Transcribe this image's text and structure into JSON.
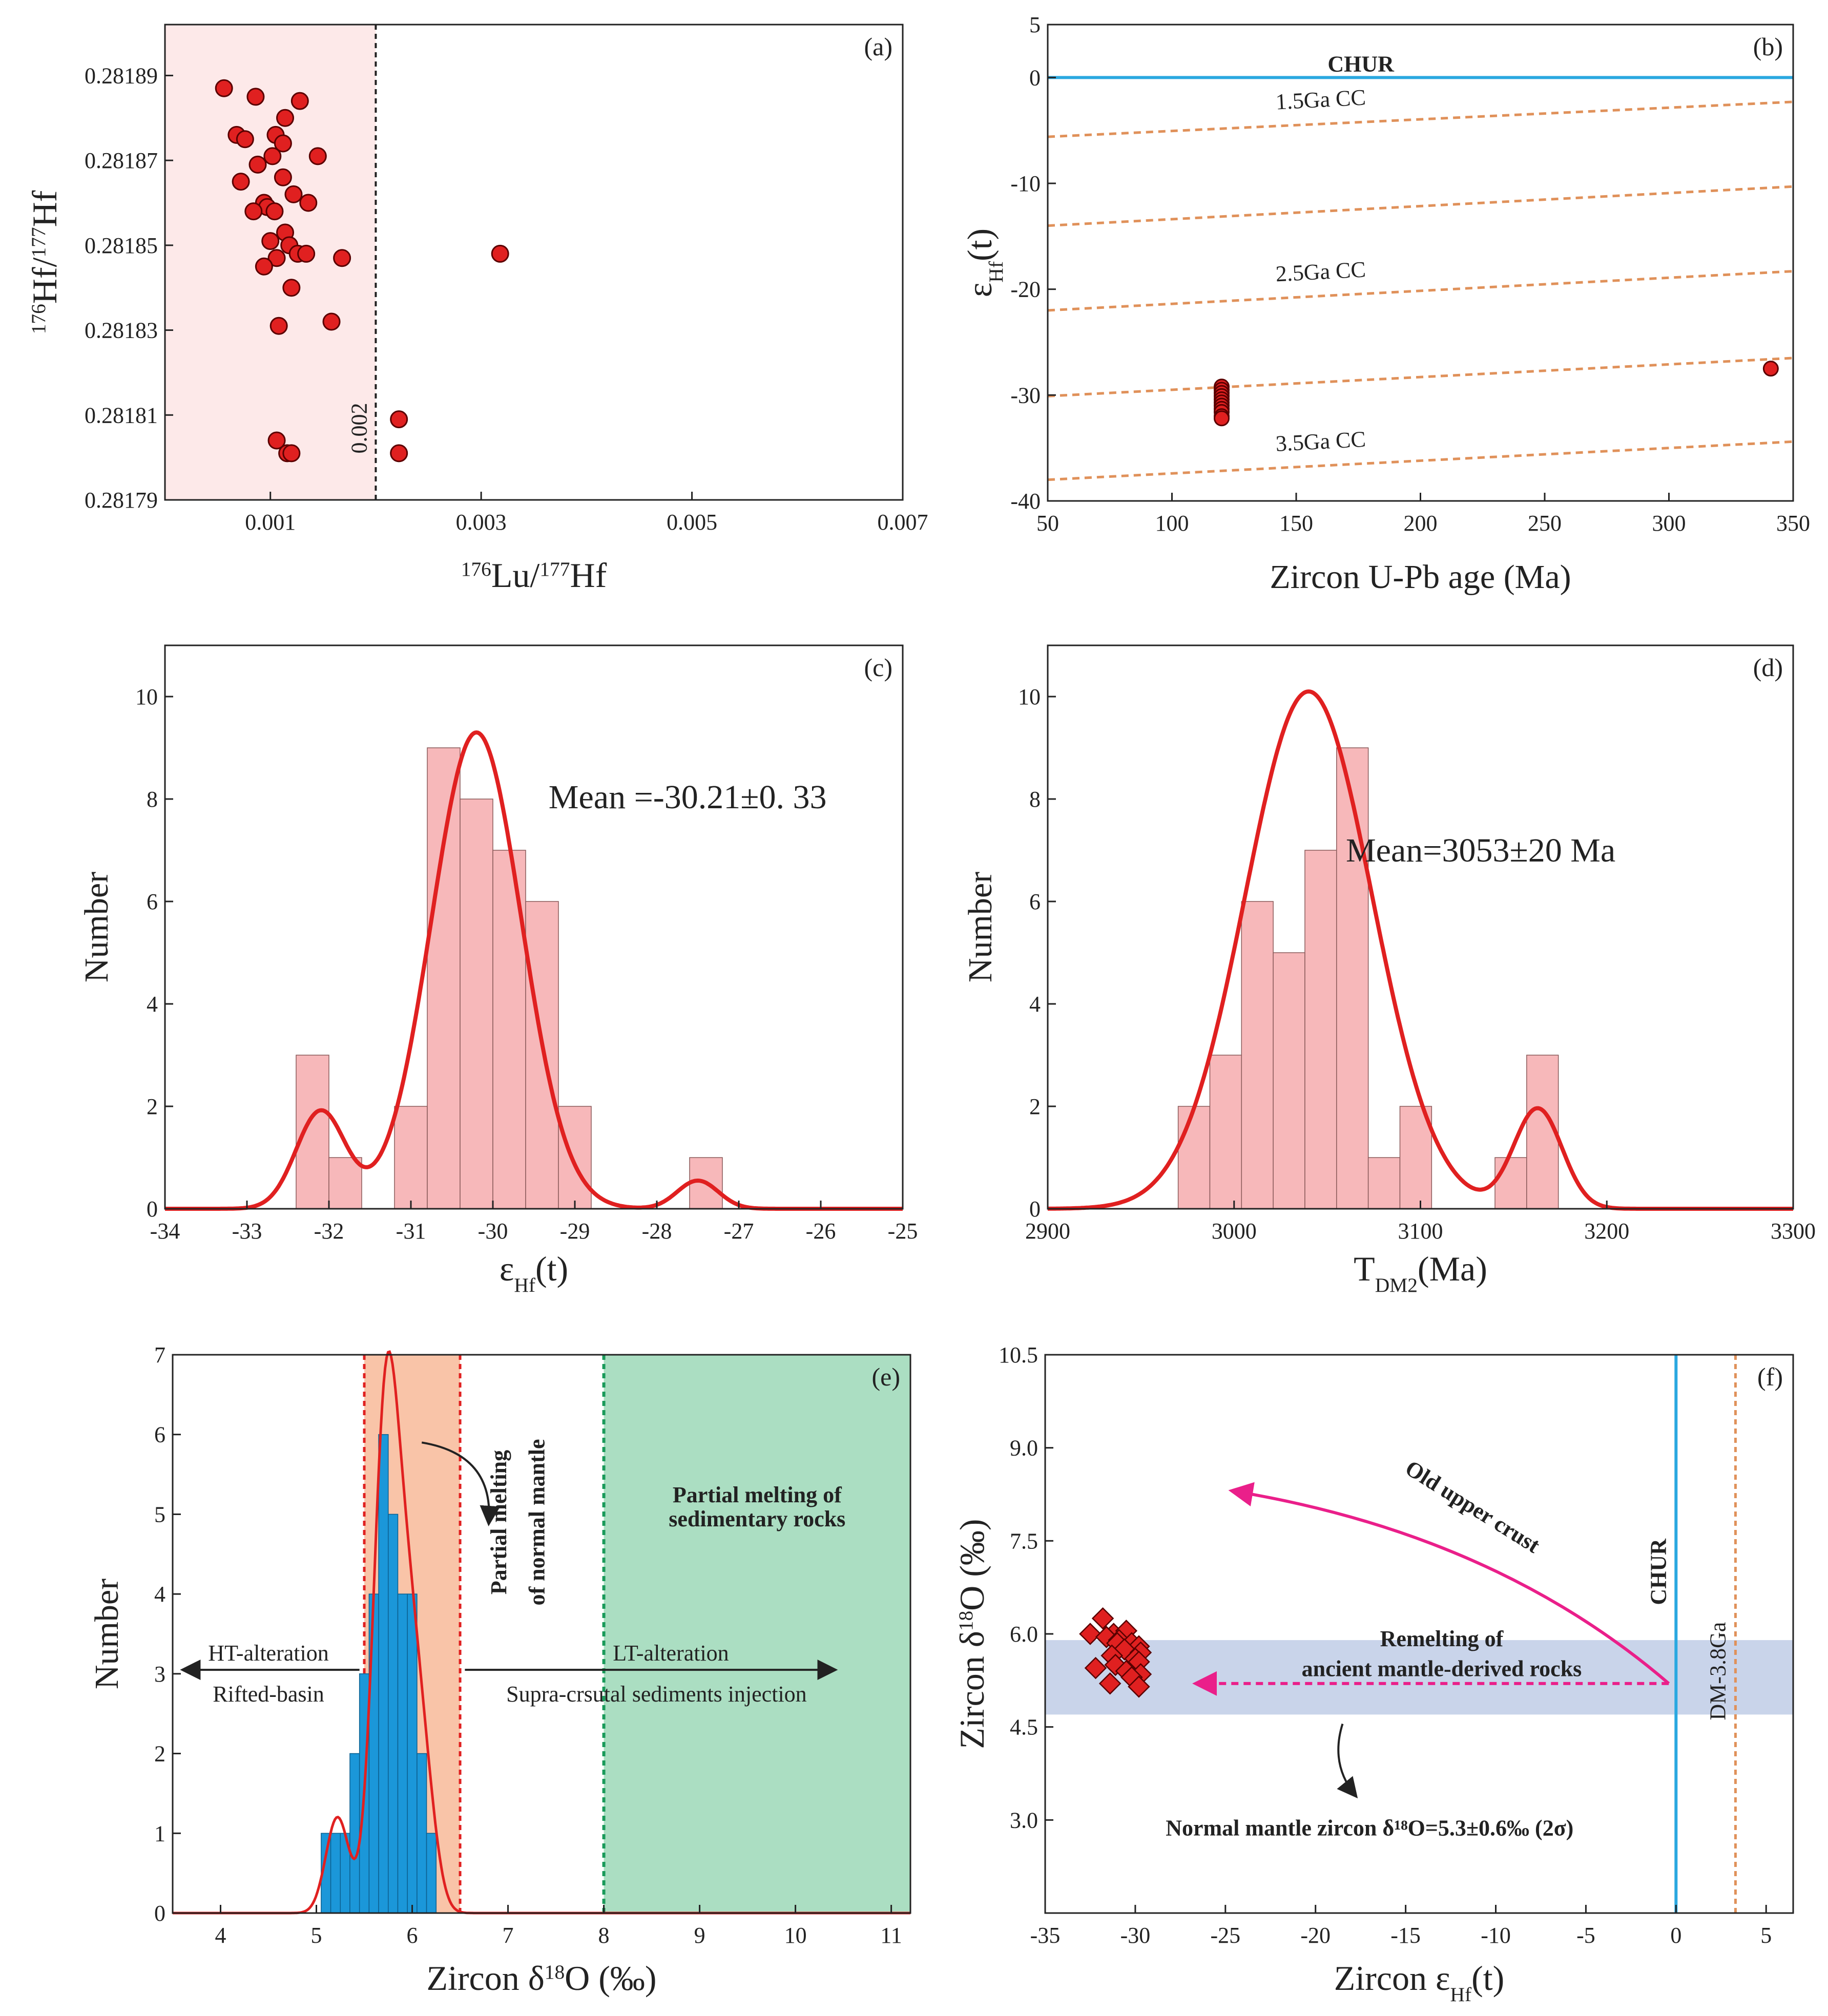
{
  "chart_data": [
    {
      "panel": "a",
      "type": "scatter",
      "label": "(a)",
      "xlabel_sup1": "176",
      "xlabel_mid1": "Lu/",
      "xlabel_sup2": "177",
      "xlabel_mid2": "Hf",
      "ylabel_sup1": "176",
      "ylabel_mid1": "Hf/",
      "ylabel_sup2": "177",
      "ylabel_mid2": "Hf",
      "xlim": [
        0,
        0.007
      ],
      "ylim": [
        0.28179,
        0.281902
      ],
      "xticks": [
        "0.001",
        "0.003",
        "0.005",
        "0.007"
      ],
      "xtick_values": [
        0.001,
        0.003,
        0.005,
        0.007
      ],
      "yticks": [
        "0.28179",
        "0.28181",
        "0.28183",
        "0.28185",
        "0.28187",
        "0.28189"
      ],
      "ytick_values": [
        0.28179,
        0.28181,
        0.28183,
        0.28185,
        0.28187,
        0.28189
      ],
      "threshold": 0.002,
      "threshold_label": "0.002",
      "region_color": "#fde9e9",
      "point_color": "#e02020",
      "points": [
        [
          0.00056,
          0.281887
        ],
        [
          0.00086,
          0.281885
        ],
        [
          0.00068,
          0.281876
        ],
        [
          0.00076,
          0.281875
        ],
        [
          0.00105,
          0.281876
        ],
        [
          0.00112,
          0.281874
        ],
        [
          0.00102,
          0.281871
        ],
        [
          0.00088,
          0.281869
        ],
        [
          0.00128,
          0.281884
        ],
        [
          0.00114,
          0.28188
        ],
        [
          0.00145,
          0.281871
        ],
        [
          0.00072,
          0.281865
        ],
        [
          0.00112,
          0.281866
        ],
        [
          0.00094,
          0.28186
        ],
        [
          0.00122,
          0.281862
        ],
        [
          0.00097,
          0.281859
        ],
        [
          0.00104,
          0.281858
        ],
        [
          0.00084,
          0.281858
        ],
        [
          0.00136,
          0.28186
        ],
        [
          0.00114,
          0.281853
        ],
        [
          0.00118,
          0.28185
        ],
        [
          0.001,
          0.281851
        ],
        [
          0.00106,
          0.281847
        ],
        [
          0.00126,
          0.281848
        ],
        [
          0.00134,
          0.281848
        ],
        [
          0.00168,
          0.281847
        ],
        [
          0.00094,
          0.281845
        ],
        [
          0.0012,
          0.28184
        ],
        [
          0.00158,
          0.281832
        ],
        [
          0.00108,
          0.281831
        ],
        [
          0.00318,
          0.281848
        ],
        [
          0.00106,
          0.281804
        ],
        [
          0.00116,
          0.281801
        ],
        [
          0.0012,
          0.281801
        ],
        [
          0.00222,
          0.281809
        ],
        [
          0.00222,
          0.281801
        ]
      ]
    },
    {
      "panel": "b",
      "type": "scatter",
      "label": "(b)",
      "xlabel": "Zircon  U-Pb  age  (Ma)",
      "ylabel_main": "ε",
      "ylabel_sub": "Hf",
      "ylabel_tail": "(t)",
      "xlim": [
        50,
        350
      ],
      "ylim": [
        -40,
        5
      ],
      "xticks": [
        "50",
        "100",
        "150",
        "200",
        "250",
        "300",
        "350"
      ],
      "xtick_values": [
        50,
        100,
        150,
        200,
        250,
        300,
        350
      ],
      "yticks": [
        "5",
        "0",
        "-10",
        "-20",
        "-30",
        "-40"
      ],
      "ytick_values": [
        5,
        0,
        -10,
        -20,
        -30,
        -40
      ],
      "chur_label": "CHUR",
      "chur_color": "#2aa8e0",
      "cc_color": "#e0915a",
      "cc_lines": [
        {
          "label": "1.5Ga CC",
          "y50": -5.6,
          "y350": -2.3,
          "show": true
        },
        {
          "label": "",
          "y50": -14.0,
          "y350": -10.3,
          "show": false
        },
        {
          "label": "2.5Ga CC",
          "y50": -22.0,
          "y350": -18.3,
          "show": true
        },
        {
          "label": "",
          "y50": -30.1,
          "y350": -26.5,
          "show": false
        },
        {
          "label": "3.5Ga CC",
          "y50": -38.0,
          "y350": -34.4,
          "show": true
        }
      ],
      "point_color": "#e02020",
      "points": [
        [
          120,
          -29.2
        ],
        [
          120,
          -29.5
        ],
        [
          120,
          -29.8
        ],
        [
          120,
          -30.1
        ],
        [
          120,
          -30.4
        ],
        [
          120,
          -30.7
        ],
        [
          120,
          -31.0
        ],
        [
          120,
          -31.3
        ],
        [
          120,
          -31.6
        ],
        [
          120,
          -32.0
        ],
        [
          120,
          -32.2
        ],
        [
          341,
          -27.5
        ]
      ]
    },
    {
      "panel": "c",
      "type": "bar",
      "label": "(c)",
      "xlabel_main": "ε",
      "xlabel_sub": "Hf",
      "xlabel_tail": "(t)",
      "ylabel": "Number",
      "xlim": [
        -34,
        -25
      ],
      "ylim": [
        0,
        11
      ],
      "xticks": [
        "-34",
        "-33",
        "-32",
        "-31",
        "-30",
        "-29",
        "-28",
        "-27",
        "-26",
        "-25"
      ],
      "xtick_values": [
        -34,
        -33,
        -32,
        -31,
        -30,
        -29,
        -28,
        -27,
        -26,
        -25
      ],
      "yticks": [
        "0",
        "2",
        "4",
        "6",
        "8",
        "10"
      ],
      "ytick_values": [
        0,
        2,
        4,
        6,
        8,
        10
      ],
      "bar_color": "#f7b8ba",
      "curve_color": "#e02020",
      "annotation": "Mean =-30.21±0. 33",
      "bins": [
        {
          "x0": -32.4,
          "x1": -32.0,
          "count": 3
        },
        {
          "x0": -32.0,
          "x1": -31.6,
          "count": 1
        },
        {
          "x0": -31.2,
          "x1": -30.8,
          "count": 2
        },
        {
          "x0": -30.8,
          "x1": -30.4,
          "count": 9
        },
        {
          "x0": -30.4,
          "x1": -30.0,
          "count": 8
        },
        {
          "x0": -30.0,
          "x1": -29.6,
          "count": 7
        },
        {
          "x0": -29.6,
          "x1": -29.2,
          "count": 6
        },
        {
          "x0": -29.2,
          "x1": -28.8,
          "count": 2
        },
        {
          "x0": -27.6,
          "x1": -27.2,
          "count": 1
        }
      ],
      "curve_components": [
        {
          "mu": -30.2,
          "sigma": 0.55,
          "amp": 9.3
        },
        {
          "mu": -32.1,
          "sigma": 0.3,
          "amp": 1.9
        },
        {
          "mu": -27.5,
          "sigma": 0.25,
          "amp": 0.55
        }
      ]
    },
    {
      "panel": "d",
      "type": "bar",
      "label": "(d)",
      "xlabel_main": "T",
      "xlabel_sub": "DM2",
      "xlabel_tail": "(Ma)",
      "ylabel": "Number",
      "xlim": [
        2900,
        3300
      ],
      "ylim": [
        0,
        11
      ],
      "xticks": [
        "2900",
        "3000",
        "3100",
        "3200",
        "3300"
      ],
      "xtick_values": [
        2900,
        3000,
        3100,
        3200,
        3300
      ],
      "yticks": [
        "0",
        "2",
        "4",
        "6",
        "8",
        "10"
      ],
      "ytick_values": [
        0,
        2,
        4,
        6,
        8,
        10
      ],
      "bar_color": "#f7b8ba",
      "curve_color": "#e02020",
      "annotation": "Mean=3053±20 Ma",
      "bins": [
        {
          "x0": 2970,
          "x1": 2987,
          "count": 2
        },
        {
          "x0": 2987,
          "x1": 3004,
          "count": 3
        },
        {
          "x0": 3004,
          "x1": 3021,
          "count": 6
        },
        {
          "x0": 3021,
          "x1": 3038,
          "count": 5
        },
        {
          "x0": 3038,
          "x1": 3055,
          "count": 7
        },
        {
          "x0": 3055,
          "x1": 3072,
          "count": 9
        },
        {
          "x0": 3072,
          "x1": 3089,
          "count": 1
        },
        {
          "x0": 3089,
          "x1": 3106,
          "count": 2
        },
        {
          "x0": 3140,
          "x1": 3157,
          "count": 1
        },
        {
          "x0": 3157,
          "x1": 3174,
          "count": 3
        }
      ],
      "curve_components": [
        {
          "mu": 3040,
          "sigma": 34,
          "amp": 10.1
        },
        {
          "mu": 3163,
          "sigma": 13,
          "amp": 1.95
        }
      ]
    },
    {
      "panel": "e",
      "type": "bar",
      "label": "(e)",
      "xlabel_main": "Zircon δ",
      "xlabel_sup": "18",
      "xlabel_tail": "O (‰)",
      "ylabel": "Number",
      "xlim": [
        3.5,
        11.2
      ],
      "ylim": [
        0,
        7
      ],
      "xticks": [
        "4",
        "5",
        "6",
        "7",
        "8",
        "9",
        "10",
        "11"
      ],
      "xtick_values": [
        4,
        5,
        6,
        7,
        8,
        9,
        10,
        11
      ],
      "yticks": [
        "0",
        "1",
        "2",
        "3",
        "4",
        "5",
        "6",
        "7"
      ],
      "ytick_values": [
        0,
        1,
        2,
        3,
        4,
        5,
        6,
        7
      ],
      "bar_color": "#1b97d9",
      "curve_color": "#e02020",
      "mantle_band": [
        5.5,
        6.5
      ],
      "mantle_band_color": "#f9c4a8",
      "sediment_band": [
        8.0,
        11.2
      ],
      "sediment_band_color": "#abdec2",
      "mantle_label_1": "Partial melting",
      "mantle_label_2": "of normal mantle",
      "sediment_label_1": "Partial melting of",
      "sediment_label_2": "sedimentary rocks",
      "ht_label": "HT-alteration",
      "rift_label": "Rifted-basin",
      "lt_label": "LT-alteration",
      "supra_label": "Supra-crsutal sediments injection",
      "bins": [
        {
          "x0": 5.05,
          "x1": 5.15,
          "count": 1
        },
        {
          "x0": 5.15,
          "x1": 5.25,
          "count": 1
        },
        {
          "x0": 5.25,
          "x1": 5.35,
          "count": 1
        },
        {
          "x0": 5.35,
          "x1": 5.45,
          "count": 2
        },
        {
          "x0": 5.45,
          "x1": 5.55,
          "count": 3
        },
        {
          "x0": 5.55,
          "x1": 5.65,
          "count": 4
        },
        {
          "x0": 5.65,
          "x1": 5.75,
          "count": 6
        },
        {
          "x0": 5.75,
          "x1": 5.85,
          "count": 5
        },
        {
          "x0": 5.85,
          "x1": 5.95,
          "count": 4
        },
        {
          "x0": 5.95,
          "x1": 6.05,
          "count": 4
        },
        {
          "x0": 6.05,
          "x1": 6.15,
          "count": 2
        },
        {
          "x0": 6.15,
          "x1": 6.25,
          "count": 1
        }
      ],
      "curve_components": [
        {
          "mu": 5.72,
          "sigma": 0.13,
          "amp": 6.0
        },
        {
          "mu": 5.95,
          "sigma": 0.14,
          "amp": 3.3
        },
        {
          "mu": 5.22,
          "sigma": 0.12,
          "amp": 1.2
        },
        {
          "mu": 6.15,
          "sigma": 0.12,
          "amp": 1.0
        }
      ]
    },
    {
      "panel": "f",
      "type": "scatter",
      "label": "(f)",
      "xlabel_main": "Zircon ε",
      "xlabel_sub": "Hf",
      "xlabel_tail": "(t)",
      "ylabel_main": "Zircon δ",
      "ylabel_sup": "18",
      "ylabel_tail": "O (‰)",
      "xlim": [
        -35,
        6.5
      ],
      "ylim": [
        1.5,
        10.5
      ],
      "xticks": [
        "-35",
        "-30",
        "-25",
        "-20",
        "-15",
        "-10",
        "-5",
        "0",
        "5"
      ],
      "xtick_values": [
        -35,
        -30,
        -25,
        -20,
        -15,
        -10,
        -5,
        0,
        5
      ],
      "yticks": [
        "3.0",
        "4.5",
        "6.0",
        "7.5",
        "9.0",
        "10.5"
      ],
      "ytick_values": [
        3.0,
        4.5,
        6.0,
        7.5,
        9.0,
        10.5
      ],
      "mantle_band": [
        4.7,
        5.9
      ],
      "mantle_band_color": "#c9d4ea",
      "chur_x": 0,
      "chur_label": "CHUR",
      "chur_color": "#2aa8e0",
      "dm_x": 3.3,
      "dm_label": "DM-3.8Ga",
      "dm_color": "#e0915a",
      "arrow_color": "#ea1f8a",
      "old_crust_label": "Old upper crust",
      "remelt_label_1": "Remelting of",
      "remelt_label_2": "ancient mantle-derived rocks",
      "normal_label": "Normal mantle zircon δ¹⁸O=5.3±0.6‰ (2σ)",
      "point_color": "#e02020",
      "points": [
        [
          -31.8,
          6.25
        ],
        [
          -32.5,
          6.0
        ],
        [
          -31.2,
          6.0
        ],
        [
          -30.5,
          6.05
        ],
        [
          -31.6,
          5.95
        ],
        [
          -30.9,
          5.9
        ],
        [
          -31.0,
          5.85
        ],
        [
          -30.2,
          5.85
        ],
        [
          -29.8,
          5.8
        ],
        [
          -30.6,
          5.75
        ],
        [
          -29.7,
          5.7
        ],
        [
          -31.3,
          5.65
        ],
        [
          -30.0,
          5.6
        ],
        [
          -29.8,
          5.55
        ],
        [
          -31.1,
          5.5
        ],
        [
          -32.2,
          5.45
        ],
        [
          -30.5,
          5.4
        ],
        [
          -29.7,
          5.35
        ],
        [
          -30.2,
          5.3
        ],
        [
          -31.4,
          5.2
        ],
        [
          -29.8,
          5.15
        ]
      ]
    }
  ]
}
